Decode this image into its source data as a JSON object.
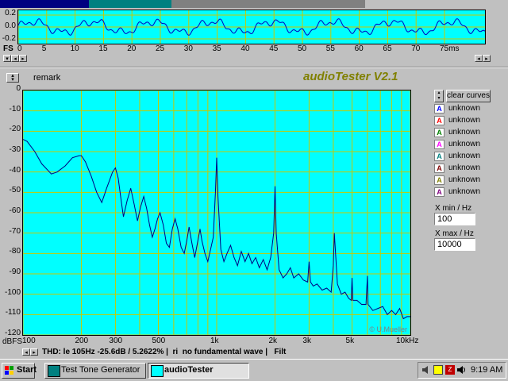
{
  "oscilloscope": {
    "y_labels": [
      "0.2",
      "0.0",
      "-0.2"
    ],
    "fs_label": "FS",
    "t_ticks": [
      "0",
      "5",
      "10",
      "15",
      "20",
      "25",
      "30",
      "35",
      "40",
      "45",
      "50",
      "55",
      "60",
      "65",
      "70",
      "75ms"
    ],
    "colors": {
      "background": "#00ffff",
      "trace": "#0000c0"
    }
  },
  "header": {
    "remark": "remark",
    "app_title": "audioTester V2.1"
  },
  "chart_data": {
    "type": "line",
    "y_unit": "dBFS",
    "x_scale": "log",
    "xlim": [
      100,
      10000
    ],
    "ylim": [
      -120,
      0
    ],
    "y_ticks": [
      "0",
      "-10",
      "-20",
      "-30",
      "-40",
      "-50",
      "-60",
      "-70",
      "-80",
      "-90",
      "-100",
      "-110",
      "-120"
    ],
    "x_tick_labels": [
      "100",
      "200",
      "300",
      "500",
      "1k",
      "2k",
      "3k",
      "5k",
      "10kHz"
    ],
    "grid": true,
    "watermark": "© U.Mueller",
    "series": [
      {
        "color": "#000080",
        "x": [
          100,
          105,
          115,
          125,
          140,
          150,
          165,
          180,
          195,
          200,
          210,
          225,
          240,
          255,
          270,
          280,
          290,
          300,
          310,
          320,
          330,
          345,
          360,
          375,
          390,
          405,
          420,
          435,
          450,
          465,
          480,
          495,
          510,
          530,
          550,
          570,
          590,
          610,
          630,
          655,
          680,
          700,
          720,
          745,
          770,
          795,
          820,
          840,
          870,
          900,
          930,
          960,
          985,
          1000,
          1015,
          1050,
          1090,
          1130,
          1180,
          1230,
          1280,
          1340,
          1400,
          1460,
          1520,
          1590,
          1660,
          1740,
          1820,
          1900,
          1970,
          2000,
          2030,
          2100,
          2200,
          2300,
          2400,
          2500,
          2650,
          2800,
          2950,
          3000,
          3050,
          3150,
          3300,
          3500,
          3700,
          3900,
          4000,
          4050,
          4200,
          4400,
          4600,
          4800,
          4950,
          5000,
          5050,
          5300,
          5600,
          5900,
          6000,
          6050,
          6400,
          6800,
          7200,
          7600,
          8000,
          8400,
          8800,
          9200,
          9600,
          10000
        ],
        "y": [
          -24,
          -25,
          -30,
          -36,
          -41,
          -40,
          -37,
          -33,
          -32,
          -32,
          -35,
          -42,
          -50,
          -55,
          -48,
          -44,
          -40,
          -38,
          -43,
          -53,
          -62,
          -54,
          -48,
          -56,
          -64,
          -57,
          -52,
          -58,
          -66,
          -72,
          -68,
          -63,
          -60,
          -66,
          -75,
          -77,
          -68,
          -63,
          -68,
          -77,
          -80,
          -74,
          -67,
          -75,
          -82,
          -75,
          -68,
          -74,
          -80,
          -84,
          -78,
          -72,
          -50,
          -33,
          -52,
          -78,
          -84,
          -80,
          -76,
          -82,
          -86,
          -79,
          -84,
          -80,
          -85,
          -82,
          -87,
          -83,
          -88,
          -82,
          -70,
          -47,
          -70,
          -88,
          -92,
          -90,
          -87,
          -92,
          -90,
          -93,
          -94,
          -84,
          -94,
          -96,
          -95,
          -98,
          -97,
          -99,
          -86,
          -70,
          -95,
          -100,
          -99,
          -102,
          -103,
          -92,
          -103,
          -103,
          -105,
          -105,
          -91,
          -105,
          -108,
          -107,
          -106,
          -110,
          -108,
          -110,
          -107,
          -112,
          -111,
          -111
        ]
      }
    ]
  },
  "sidebar": {
    "clear_curves": "clear curves",
    "legend": [
      {
        "letter": "A",
        "label": "unknown",
        "color": "#0000ff"
      },
      {
        "letter": "A",
        "label": "unknown",
        "color": "#ff0000"
      },
      {
        "letter": "A",
        "label": "unknown",
        "color": "#008000"
      },
      {
        "letter": "A",
        "label": "unknown",
        "color": "#ff00ff"
      },
      {
        "letter": "A",
        "label": "unknown",
        "color": "#008080"
      },
      {
        "letter": "A",
        "label": "unknown",
        "color": "#800000"
      },
      {
        "letter": "A",
        "label": "unknown",
        "color": "#808000"
      },
      {
        "letter": "A",
        "label": "unknown",
        "color": "#800080"
      }
    ],
    "xmin_label": "X min / Hz",
    "xmin_value": "100",
    "xmax_label": "X max / Hz",
    "xmax_value": "10000"
  },
  "status": {
    "text": "THD: le 105Hz -25.6dB / 5.2622% |  ri  no fundamental wave |   Filt"
  },
  "taskbar": {
    "start": "Start",
    "tasks": [
      "Test Tone Generator",
      "audioTester"
    ],
    "clock": "9:19 AM"
  }
}
